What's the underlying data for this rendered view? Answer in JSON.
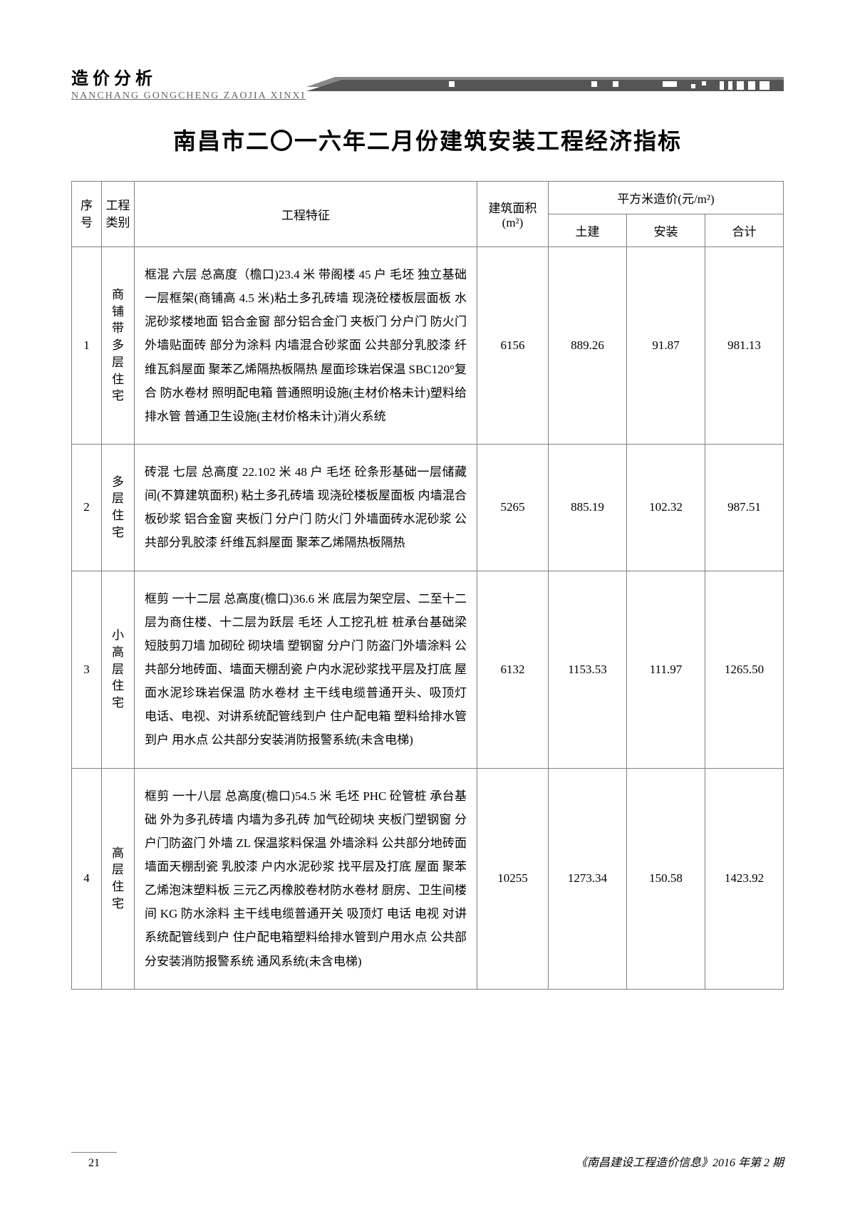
{
  "header": {
    "label": "造价分析",
    "pinyin": "NANCHANG GONGCHENG ZAOJIA XINXI"
  },
  "title": "南昌市二〇一六年二月份建筑安装工程经济指标",
  "table": {
    "headers": {
      "seq": "序号",
      "category": "工程类别",
      "features": "工程特征",
      "area_label": "建筑面积",
      "area_unit": "(m²)",
      "price_group": "平方米造价(元/m²)",
      "civil": "土建",
      "install": "安装",
      "total": "合计"
    },
    "rows": [
      {
        "seq": "1",
        "category": "商铺带多层住宅",
        "features": "框混 六层 总高度（檐口)23.4 米 带阁楼 45 户 毛坯 独立基础一层框架(商铺高 4.5 米)粘土多孔砖墙 现浇砼楼板层面板 水泥砂浆楼地面 铝合金窗 部分铝合金门 夹板门 分户门 防火门 外墙贴面砖 部分为涂料 内墙混合砂浆面 公共部分乳胶漆 纤维瓦斜屋面 聚苯乙烯隔热板隔热 屋面珍珠岩保温 SBC120°复合 防水卷材 照明配电箱 普通照明设施(主材价格未计)塑料给排水管 普通卫生设施(主材价格未计)消火系统",
        "area": "6156",
        "civil": "889.26",
        "install": "91.87",
        "total": "981.13"
      },
      {
        "seq": "2",
        "category": "多层住宅",
        "features": "砖混 七层 总高度 22.102 米 48 户 毛坯 砼条形基础一层储藏间(不算建筑面积) 粘土多孔砖墙 现浇砼楼板屋面板 内墙混合板砂浆 铝合金窗 夹板门 分户门 防火门 外墙面砖水泥砂浆 公共部分乳胶漆 纤维瓦斜屋面 聚苯乙烯隔热板隔热",
        "area": "5265",
        "civil": "885.19",
        "install": "102.32",
        "total": "987.51"
      },
      {
        "seq": "3",
        "category": "小高层住宅",
        "features": "框剪 一十二层 总高度(檐口)36.6 米 底层为架空层、二至十二层为商住楼、十二层为跃层 毛坯 人工挖孔桩 桩承台基础梁 短肢剪刀墙 加砌砼 砌块墙 塑钢窗 分户门 防盗门外墙涂料 公共部分地砖面、墙面天棚刮瓷 户内水泥砂浆找平层及打底 屋面水泥珍珠岩保温 防水卷材 主干线电缆普通开头、吸顶灯 电话、电视、对讲系统配管线到户 住户配电箱 塑料给排水管到户 用水点 公共部分安装消防报警系统(未含电梯)",
        "area": "6132",
        "civil": "1153.53",
        "install": "111.97",
        "total": "1265.50"
      },
      {
        "seq": "4",
        "category": "高层住宅",
        "features": "框剪 一十八层 总高度(檐口)54.5 米 毛坯 PHC 砼管桩 承台基础 外为多孔砖墙 内墙为多孔砖 加气砼砌块 夹板门塑钢窗 分户门防盗门 外墙 ZL 保温浆料保温 外墙涂料 公共部分地砖面 墙面天棚刮瓷 乳胶漆 户内水泥砂浆 找平层及打底 屋面 聚苯乙烯泡沫塑料板 三元乙丙橡胶卷材防水卷材 厨房、卫生间楼间 KG 防水涂料 主干线电缆普通开关 吸顶灯 电话 电视 对讲系统配管线到户 住户配电箱塑料给排水管到户用水点 公共部分安装消防报警系统 通风系统(未含电梯)",
        "area": "10255",
        "civil": "1273.34",
        "install": "150.58",
        "total": "1423.92"
      }
    ]
  },
  "footer": {
    "page": "21",
    "publication": "《南昌建设工程造价信息》2016 年第 2 期"
  },
  "style": {
    "border_color": "#808080",
    "text_color": "#000000",
    "bg_color": "#ffffff",
    "title_fontsize": 32,
    "body_fontsize": 17,
    "feature_fontsize": 16
  }
}
